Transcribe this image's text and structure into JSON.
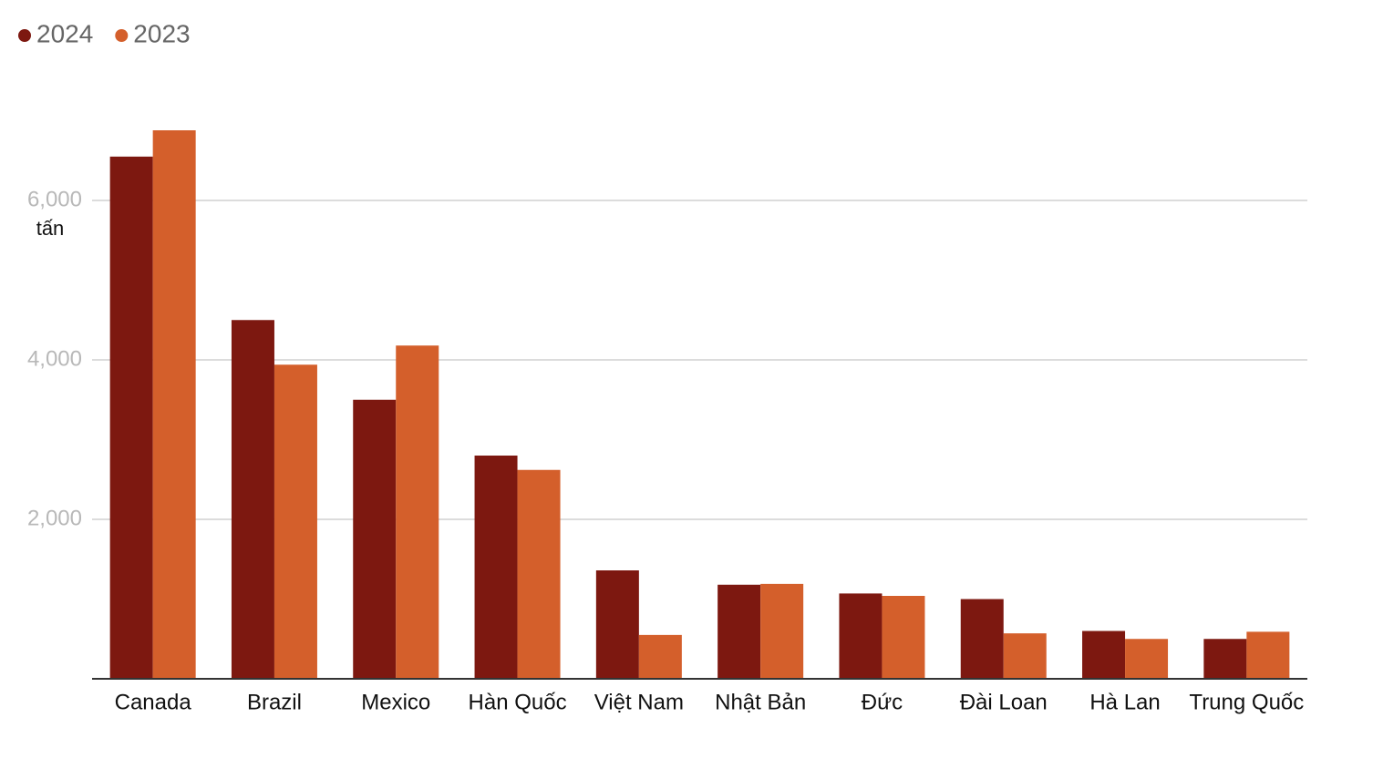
{
  "chart_data": {
    "type": "bar",
    "y_label": "tấn",
    "categories": [
      "Canada",
      "Brazil",
      "Mexico",
      "Hàn Quốc",
      "Việt Nam",
      "Nhật Bản",
      "Đức",
      "Đài Loan",
      "Hà Lan",
      "Trung Quốc"
    ],
    "series": [
      {
        "name": "2024",
        "color": "#7d1810",
        "values": [
          6550,
          4500,
          3500,
          2800,
          1360,
          1180,
          1070,
          1000,
          600,
          500
        ]
      },
      {
        "name": "2023",
        "color": "#d45f2b",
        "values": [
          6880,
          3940,
          4180,
          2620,
          550,
          1190,
          1040,
          570,
          500,
          590
        ]
      }
    ],
    "ylim": [
      0,
      7000
    ],
    "yticks": [
      {
        "value": 2000,
        "label": "2,000"
      },
      {
        "value": 4000,
        "label": "4,000"
      },
      {
        "value": 6000,
        "label": "6,000"
      }
    ],
    "grid": true,
    "legend": "top-left"
  }
}
